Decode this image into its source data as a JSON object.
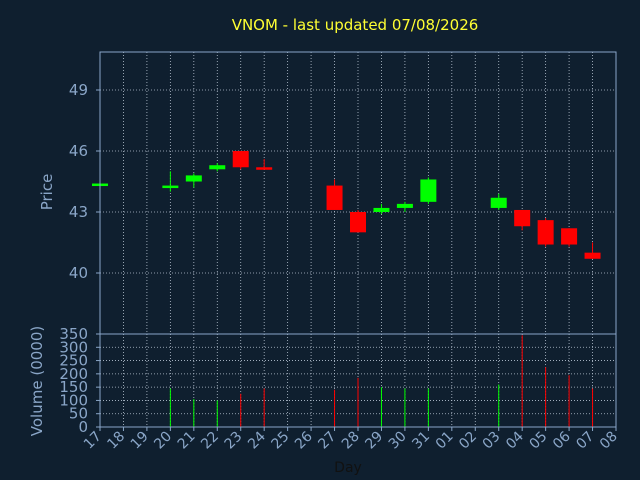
{
  "chart_data": [
    {
      "type": "candlestick",
      "title": "VNOM - last updated 07/08/2026",
      "ylabel": "Price",
      "ylim": [
        37.0,
        41.0
      ],
      "yticks": [
        40,
        43,
        46,
        49
      ],
      "grid": true,
      "candles": [
        {
          "x": "17",
          "open": 44.4,
          "high": 44.4,
          "low": 44.4,
          "close": 44.4
        },
        {
          "x": "20",
          "open": 44.2,
          "high": 45.0,
          "low": 44.0,
          "close": 44.3
        },
        {
          "x": "21",
          "open": 44.5,
          "high": 44.9,
          "low": 44.2,
          "close": 44.8
        },
        {
          "x": "22",
          "open": 45.1,
          "high": 45.4,
          "low": 45.0,
          "close": 45.3
        },
        {
          "x": "23",
          "open": 46.0,
          "high": 46.0,
          "low": 45.1,
          "close": 45.2
        },
        {
          "x": "24",
          "open": 45.2,
          "high": 45.6,
          "low": 45.1,
          "close": 45.1
        },
        {
          "x": "27",
          "open": 44.3,
          "high": 44.6,
          "low": 43.1,
          "close": 43.1
        },
        {
          "x": "28",
          "open": 43.0,
          "high": 43.1,
          "low": 42.0,
          "close": 42.0
        },
        {
          "x": "29",
          "open": 43.0,
          "high": 43.4,
          "low": 42.9,
          "close": 43.2
        },
        {
          "x": "30",
          "open": 43.2,
          "high": 43.5,
          "low": 43.0,
          "close": 43.4
        },
        {
          "x": "31",
          "open": 43.5,
          "high": 44.7,
          "low": 43.4,
          "close": 44.6
        },
        {
          "x": "03",
          "open": 43.2,
          "high": 43.9,
          "low": 43.1,
          "close": 43.7
        },
        {
          "x": "04",
          "open": 43.1,
          "high": 43.1,
          "low": 42.1,
          "close": 42.3
        },
        {
          "x": "05",
          "open": 42.6,
          "high": 42.7,
          "low": 41.3,
          "close": 41.4
        },
        {
          "x": "06",
          "open": 42.2,
          "high": 42.2,
          "low": 41.3,
          "close": 41.4
        },
        {
          "x": "07",
          "open": 41.0,
          "high": 41.5,
          "low": 40.7,
          "close": 40.7
        }
      ]
    },
    {
      "type": "bar",
      "ylabel": "Volume (0000)",
      "xlabel": "Day",
      "ylim": [
        0,
        350
      ],
      "yticks": [
        0,
        50,
        100,
        150,
        200,
        250,
        300,
        350
      ],
      "categories": [
        "17",
        "18",
        "19",
        "20",
        "21",
        "22",
        "23",
        "24",
        "25",
        "26",
        "27",
        "28",
        "29",
        "30",
        "31",
        "01",
        "02",
        "03",
        "04",
        "05",
        "06",
        "07",
        "08"
      ],
      "values": [
        0,
        0,
        0,
        145,
        105,
        100,
        125,
        145,
        0,
        0,
        140,
        185,
        150,
        145,
        145,
        0,
        0,
        160,
        345,
        225,
        195,
        145,
        0
      ],
      "directions": [
        "",
        "",
        "",
        "up",
        "up",
        "up",
        "down",
        "down",
        "",
        "",
        "down",
        "down",
        "up",
        "up",
        "up",
        "",
        "",
        "up",
        "down",
        "down",
        "down",
        "down",
        ""
      ]
    }
  ],
  "colors": {
    "background": "#0f1f2f",
    "axis": "#8aa6c8",
    "grid": "#b8c4d2",
    "title": "#ffff33",
    "up": "#00ff00",
    "down": "#ff0000"
  }
}
